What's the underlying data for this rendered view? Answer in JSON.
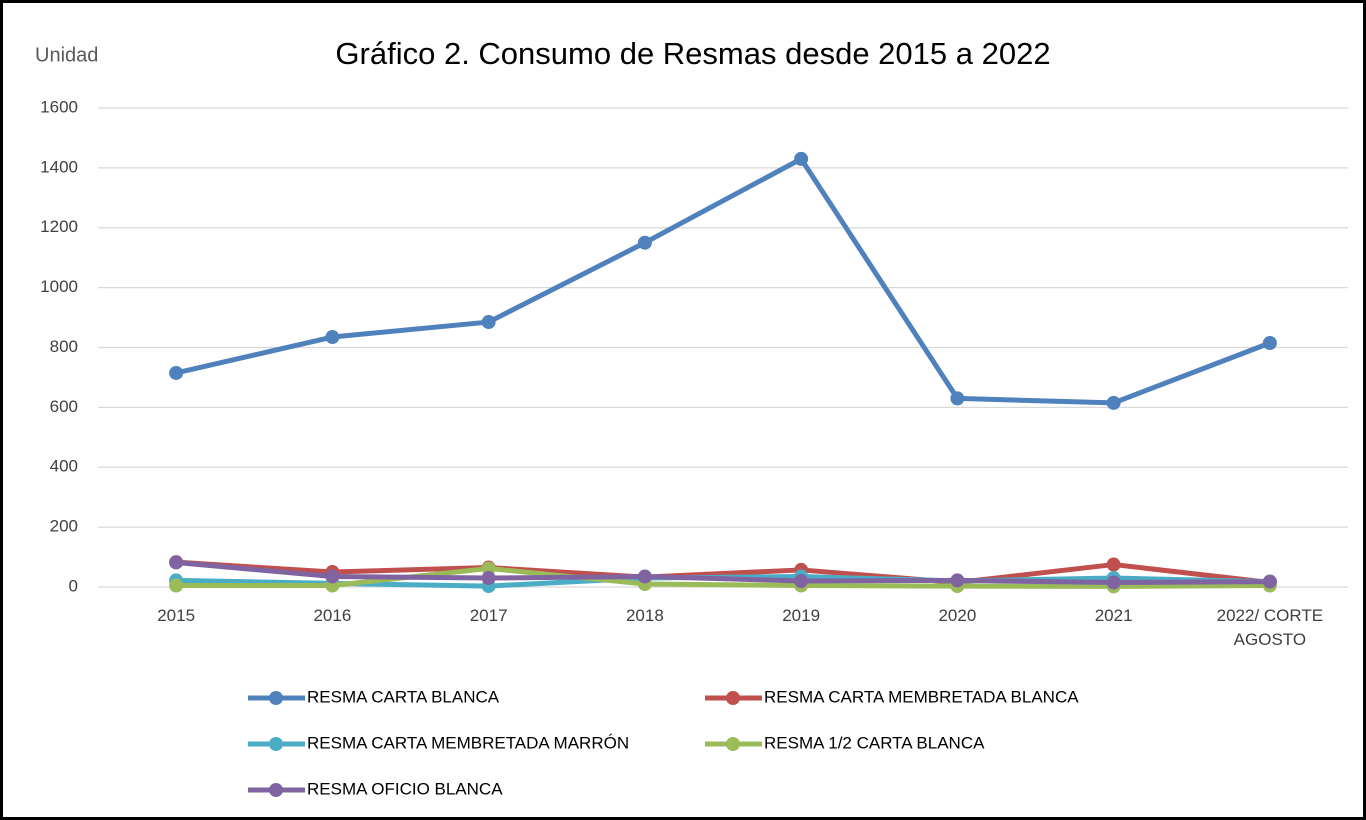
{
  "chart_data": {
    "type": "line",
    "title": "Gráfico 2. Consumo de Resmas desde 2015 a 2022",
    "y_label": "Unidad",
    "categories": [
      "2015",
      "2016",
      "2017",
      "2018",
      "2019",
      "2020",
      "2021",
      "2022/ CORTE AGOSTO"
    ],
    "series": [
      {
        "name": "RESMA CARTA BLANCA",
        "color": "#4f81bd",
        "values": [
          715,
          835,
          885,
          1150,
          1430,
          630,
          615,
          815
        ]
      },
      {
        "name": "RESMA CARTA MEMBRETADA BLANCA",
        "color": "#c0504d",
        "values": [
          83,
          50,
          65,
          33,
          57,
          15,
          75,
          15
        ]
      },
      {
        "name": "RESMA CARTA MEMBRETADA MARRÓN",
        "color": "#4bacc6",
        "values": [
          22,
          12,
          3,
          30,
          35,
          20,
          30,
          18
        ]
      },
      {
        "name": "RESMA 1/2 CARTA BLANCA",
        "color": "#9bbb59",
        "values": [
          5,
          5,
          62,
          10,
          5,
          3,
          2,
          5
        ]
      },
      {
        "name": "RESMA OFICIO BLANCA",
        "color": "#8064a2",
        "values": [
          82,
          35,
          30,
          35,
          20,
          22,
          15,
          18
        ]
      }
    ],
    "ylim": [
      0,
      1600
    ],
    "yticks": [
      0,
      200,
      400,
      600,
      800,
      1000,
      1200,
      1400,
      1600
    ],
    "grid": true,
    "legend": "bottom"
  }
}
